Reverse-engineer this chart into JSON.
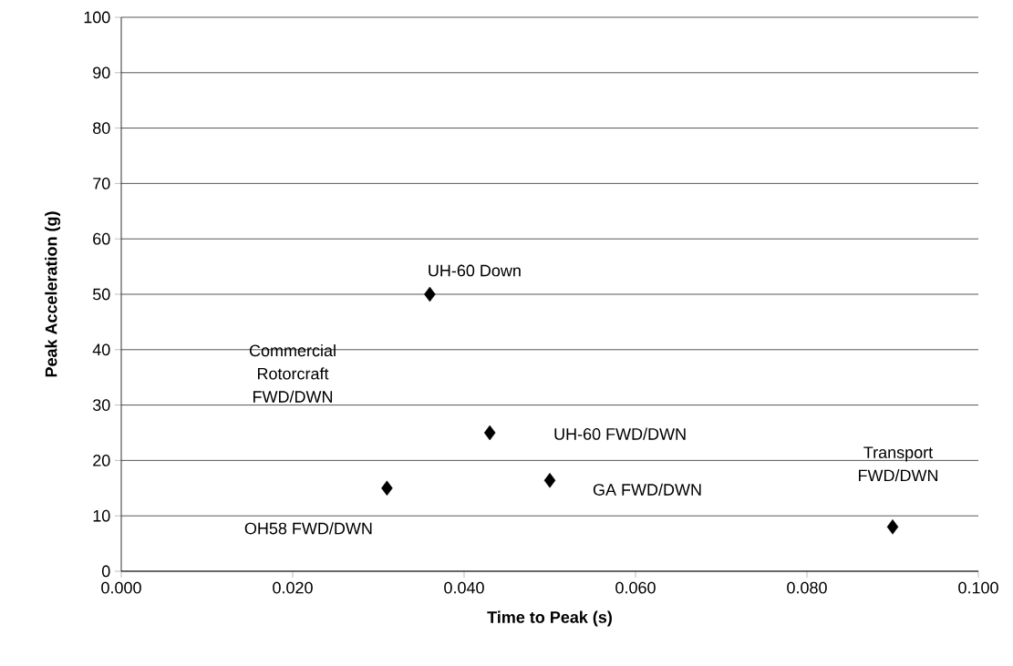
{
  "chart_data": {
    "type": "scatter",
    "xlabel": "Time to Peak (s)",
    "ylabel": "Peak Acceleration (g)",
    "x": [
      0.036,
      0.043,
      0.05,
      0.031,
      0.09
    ],
    "values": [
      50,
      25,
      16.4,
      15,
      8
    ],
    "color": "#000000",
    "marker": "diamond",
    "xlim": [
      0,
      0.1
    ],
    "ylim": [
      0,
      100
    ],
    "xticks": [
      {
        "value": 0,
        "label": "0.000"
      },
      {
        "value": 0.02,
        "label": "0.020"
      },
      {
        "value": 0.04,
        "label": "0.040"
      },
      {
        "value": 0.06,
        "label": "0.060"
      },
      {
        "value": 0.08,
        "label": "0.080"
      },
      {
        "value": 0.1,
        "label": "0.100"
      }
    ],
    "yticks": [
      0,
      10,
      20,
      30,
      40,
      50,
      60,
      70,
      80,
      90,
      100
    ],
    "grid": "y",
    "annotations": [
      {
        "text": "UH-60 Down",
        "x": 0.036,
        "y": 50
      },
      "Commercial Rotorcraft FWD/DWN",
      "UH-60 FWD/DWN",
      {
        "text": "GA FWD/DWN",
        "x": 0.05,
        "y": 16.4
      },
      {
        "text": "OH58 FWD/DWN",
        "x": 0.031,
        "y": 15
      },
      {
        "text": "Transport FWD/DWN",
        "x": 0.09,
        "y": 8
      }
    ]
  }
}
